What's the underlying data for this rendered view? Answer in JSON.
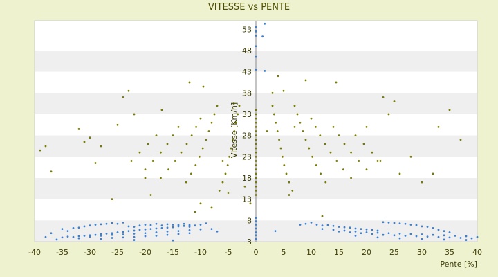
{
  "chart_data": {
    "type": "scatter",
    "title": "VITESSE vs PENTE",
    "xlabel": "Pente [%]",
    "ylabel": "Vitesse [Km/h]",
    "xlim": [
      -40,
      40
    ],
    "ylim": [
      3,
      55
    ],
    "x_ticks": [
      -40,
      -35,
      -30,
      -25,
      -20,
      -15,
      -10,
      -5,
      0,
      5,
      10,
      15,
      20,
      25,
      30,
      35,
      40
    ],
    "y_ticks": [
      3,
      8,
      13,
      18,
      23,
      28,
      33,
      38,
      43,
      48,
      53
    ],
    "grid": "alternating horizontal bands",
    "colors": {
      "blue_series": "#3a7fd0",
      "olive_series": "#7a7a00",
      "band": "#efefef",
      "plot_bg": "#ffffff"
    },
    "series": [
      {
        "color": "blue",
        "points": [
          [
            -35,
            6.0
          ],
          [
            -34,
            5.5
          ],
          [
            -33,
            6.2
          ],
          [
            -32,
            6.3
          ],
          [
            -31,
            6.6
          ],
          [
            -30,
            6.8
          ],
          [
            -29,
            7.0
          ],
          [
            -28,
            7.1
          ],
          [
            -27,
            7.2
          ],
          [
            -26,
            7.4
          ],
          [
            -25,
            7.2
          ],
          [
            -24,
            7.5
          ],
          [
            -23,
            6.6
          ],
          [
            -22,
            6.5
          ],
          [
            -21,
            6.8
          ],
          [
            -20,
            7.0
          ],
          [
            -19,
            6.9
          ],
          [
            -18,
            7.2
          ],
          [
            -17,
            6.8
          ],
          [
            -16,
            7.1
          ],
          [
            -15,
            7.0
          ],
          [
            -14,
            6.9
          ],
          [
            -13,
            7.2
          ],
          [
            -12,
            6.5
          ],
          [
            -11,
            6.8
          ],
          [
            -10,
            7.0
          ],
          [
            -9,
            7.3
          ],
          [
            -35,
            4.0
          ],
          [
            -34,
            4.2
          ],
          [
            -33,
            4.1
          ],
          [
            -32,
            4.3
          ],
          [
            -31,
            4.4
          ],
          [
            -30,
            4.5
          ],
          [
            -29,
            4.6
          ],
          [
            -28,
            4.8
          ],
          [
            -27,
            4.9
          ],
          [
            -26,
            5.0
          ],
          [
            -25,
            5.2
          ],
          [
            -24,
            5.3
          ],
          [
            -23,
            5.5
          ],
          [
            -22,
            5.6
          ],
          [
            -21,
            5.8
          ],
          [
            -20,
            5.9
          ],
          [
            -19,
            6.0
          ],
          [
            -18,
            6.1
          ],
          [
            -17,
            6.2
          ],
          [
            -16,
            6.3
          ],
          [
            -15,
            6.4
          ],
          [
            -14,
            6.6
          ],
          [
            -13,
            6.7
          ],
          [
            -12,
            6.9
          ],
          [
            -30,
            4.2
          ],
          [
            -28,
            4.4
          ],
          [
            -26,
            4.6
          ],
          [
            -24,
            4.7
          ],
          [
            -22,
            4.9
          ],
          [
            -20,
            5.0
          ],
          [
            -18,
            5.2
          ],
          [
            -16,
            5.4
          ],
          [
            -14,
            5.5
          ],
          [
            -12,
            5.7
          ],
          [
            -10,
            5.9
          ],
          [
            -8,
            6.0
          ],
          [
            -7,
            5.4
          ],
          [
            -26,
            3.9
          ],
          [
            -24,
            4.0
          ],
          [
            -22,
            4.1
          ],
          [
            -20,
            4.3
          ],
          [
            -18,
            4.4
          ],
          [
            -16,
            4.6
          ],
          [
            -14,
            4.8
          ],
          [
            -12,
            5.0
          ],
          [
            -36,
            3.5
          ],
          [
            -32,
            3.8
          ],
          [
            -28,
            3.6
          ],
          [
            -22,
            3.4
          ],
          [
            -15,
            3.3
          ],
          [
            -38,
            4.1
          ],
          [
            -37,
            5.0
          ],
          [
            8,
            7.0
          ],
          [
            9,
            7.2
          ],
          [
            10,
            7.5
          ],
          [
            11,
            7.0
          ],
          [
            12,
            6.8
          ],
          [
            13,
            6.9
          ],
          [
            14,
            6.7
          ],
          [
            15,
            6.5
          ],
          [
            16,
            6.4
          ],
          [
            17,
            6.3
          ],
          [
            18,
            6.1
          ],
          [
            19,
            6.0
          ],
          [
            20,
            5.9
          ],
          [
            21,
            5.8
          ],
          [
            22,
            5.6
          ],
          [
            23,
            7.6
          ],
          [
            24,
            7.5
          ],
          [
            25,
            7.4
          ],
          [
            26,
            7.3
          ],
          [
            27,
            7.2
          ],
          [
            28,
            7.0
          ],
          [
            29,
            6.9
          ],
          [
            30,
            6.6
          ],
          [
            31,
            6.5
          ],
          [
            32,
            6.2
          ],
          [
            33,
            5.8
          ],
          [
            34,
            5.5
          ],
          [
            35,
            5.2
          ],
          [
            12,
            6.0
          ],
          [
            14,
            5.8
          ],
          [
            16,
            5.6
          ],
          [
            18,
            5.4
          ],
          [
            20,
            5.2
          ],
          [
            22,
            5.1
          ],
          [
            24,
            5.0
          ],
          [
            26,
            4.9
          ],
          [
            28,
            4.8
          ],
          [
            30,
            4.7
          ],
          [
            32,
            4.6
          ],
          [
            34,
            4.5
          ],
          [
            36,
            4.4
          ],
          [
            38,
            4.3
          ],
          [
            40,
            4.1
          ],
          [
            15,
            5.4
          ],
          [
            17,
            5.2
          ],
          [
            19,
            5.0
          ],
          [
            21,
            4.8
          ],
          [
            23,
            4.6
          ],
          [
            25,
            4.5
          ],
          [
            27,
            4.4
          ],
          [
            29,
            4.3
          ],
          [
            31,
            4.2
          ],
          [
            33,
            4.1
          ],
          [
            35,
            4.0
          ],
          [
            37,
            3.9
          ],
          [
            39,
            3.8
          ],
          [
            18,
            4.4
          ],
          [
            22,
            4.0
          ],
          [
            26,
            3.8
          ],
          [
            30,
            3.6
          ],
          [
            34,
            3.5
          ],
          [
            38,
            3.4
          ],
          [
            3.5,
            5.5
          ],
          [
            0,
            3.6
          ],
          [
            0,
            4.5
          ],
          [
            0,
            5.2
          ],
          [
            0,
            6.1
          ],
          [
            0,
            7.0
          ],
          [
            0,
            7.8
          ],
          [
            0,
            8.6
          ],
          [
            0,
            43.5
          ],
          [
            0,
            46.5
          ],
          [
            0,
            49
          ],
          [
            0,
            51.5
          ],
          [
            0,
            52.5
          ],
          [
            0,
            53.5
          ],
          [
            1.6,
            54.3
          ],
          [
            1.2,
            51.3
          ],
          [
            1.6,
            43.2
          ]
        ]
      },
      {
        "color": "olive",
        "points": [
          [
            -3,
            35
          ],
          [
            -3.3,
            33
          ],
          [
            -3.6,
            31
          ],
          [
            -3.9,
            29
          ],
          [
            -4.2,
            27
          ],
          [
            -4.5,
            25
          ],
          [
            -4.8,
            23
          ],
          [
            -5.1,
            21
          ],
          [
            -5.5,
            19
          ],
          [
            -6,
            17
          ],
          [
            -6.6,
            15
          ],
          [
            -7,
            35
          ],
          [
            -7.5,
            33
          ],
          [
            -8,
            31
          ],
          [
            -8.5,
            29
          ],
          [
            -9,
            27
          ],
          [
            -9.6,
            25
          ],
          [
            -10.2,
            23
          ],
          [
            -10.9,
            21
          ],
          [
            -11.7,
            19
          ],
          [
            -12.6,
            17
          ],
          [
            -10,
            32
          ],
          [
            -10.8,
            30
          ],
          [
            -11.6,
            28
          ],
          [
            -12.5,
            26
          ],
          [
            -13.5,
            24
          ],
          [
            -14.6,
            22
          ],
          [
            -15.8,
            20
          ],
          [
            -17.2,
            18
          ],
          [
            -14,
            30
          ],
          [
            -15,
            28
          ],
          [
            -16,
            26
          ],
          [
            -17.2,
            24
          ],
          [
            -18.6,
            22
          ],
          [
            -20,
            20
          ],
          [
            -18,
            28
          ],
          [
            -19.5,
            26
          ],
          [
            -21,
            24
          ],
          [
            -22.5,
            22
          ],
          [
            3,
            35
          ],
          [
            3.3,
            33
          ],
          [
            3.6,
            31
          ],
          [
            3.9,
            29
          ],
          [
            4.2,
            27
          ],
          [
            4.5,
            25
          ],
          [
            4.8,
            23
          ],
          [
            5.1,
            21
          ],
          [
            5.5,
            19
          ],
          [
            6,
            17
          ],
          [
            6.6,
            15
          ],
          [
            7,
            35
          ],
          [
            7.5,
            33
          ],
          [
            8,
            31
          ],
          [
            8.5,
            29
          ],
          [
            9,
            27
          ],
          [
            9.6,
            25
          ],
          [
            10.2,
            23
          ],
          [
            10.9,
            21
          ],
          [
            11.7,
            19
          ],
          [
            12.6,
            17
          ],
          [
            10,
            32
          ],
          [
            10.8,
            30
          ],
          [
            11.6,
            28
          ],
          [
            12.5,
            26
          ],
          [
            13.5,
            24
          ],
          [
            14.6,
            22
          ],
          [
            15.8,
            20
          ],
          [
            17.2,
            18
          ],
          [
            14,
            30
          ],
          [
            15,
            28
          ],
          [
            16,
            26
          ],
          [
            17.2,
            24
          ],
          [
            18.6,
            22
          ],
          [
            20,
            20
          ],
          [
            18,
            28
          ],
          [
            19.5,
            26
          ],
          [
            21,
            24
          ],
          [
            22.5,
            22
          ],
          [
            -39,
            24.5
          ],
          [
            -38,
            25.5
          ],
          [
            -37,
            19.5
          ],
          [
            -32,
            29.5
          ],
          [
            -31,
            26.5
          ],
          [
            -30,
            27.5
          ],
          [
            -29,
            21.5
          ],
          [
            -28,
            25.5
          ],
          [
            -26,
            13
          ],
          [
            -25,
            30.5
          ],
          [
            -24,
            37
          ],
          [
            -23,
            38.5
          ],
          [
            -22,
            33
          ],
          [
            -20,
            18
          ],
          [
            -19,
            14
          ],
          [
            -17,
            34
          ],
          [
            -12,
            40.5
          ],
          [
            -11,
            10
          ],
          [
            -10,
            12
          ],
          [
            -9.5,
            39.5
          ],
          [
            -8,
            11
          ],
          [
            -6,
            22
          ],
          [
            -5,
            14.5
          ],
          [
            -4,
            35.5
          ],
          [
            -2,
            16
          ],
          [
            -1,
            12
          ],
          [
            2,
            29
          ],
          [
            3,
            38
          ],
          [
            4,
            42
          ],
          [
            5,
            38.5
          ],
          [
            6,
            14
          ],
          [
            7,
            30
          ],
          [
            9,
            41
          ],
          [
            12,
            9
          ],
          [
            14.5,
            40.5
          ],
          [
            20,
            30
          ],
          [
            22,
            22
          ],
          [
            23,
            37
          ],
          [
            24,
            33
          ],
          [
            25,
            36
          ],
          [
            26,
            19
          ],
          [
            28,
            23
          ],
          [
            30,
            17
          ],
          [
            32,
            19
          ],
          [
            33,
            30
          ],
          [
            35,
            34
          ],
          [
            37,
            27
          ]
        ]
      },
      {
        "color": "olive",
        "points": [
          [
            0,
            14
          ],
          [
            0,
            15
          ],
          [
            0,
            16
          ],
          [
            0,
            17
          ],
          [
            0,
            18
          ],
          [
            0,
            19
          ],
          [
            0,
            20
          ],
          [
            0,
            21
          ],
          [
            0,
            22
          ],
          [
            0,
            23
          ],
          [
            0,
            24
          ],
          [
            0,
            25
          ],
          [
            0,
            26
          ],
          [
            0,
            27
          ],
          [
            0,
            28
          ],
          [
            0,
            29
          ],
          [
            0,
            30
          ],
          [
            0,
            31
          ],
          [
            0,
            32
          ],
          [
            0,
            33
          ],
          [
            0,
            34
          ]
        ]
      }
    ]
  }
}
